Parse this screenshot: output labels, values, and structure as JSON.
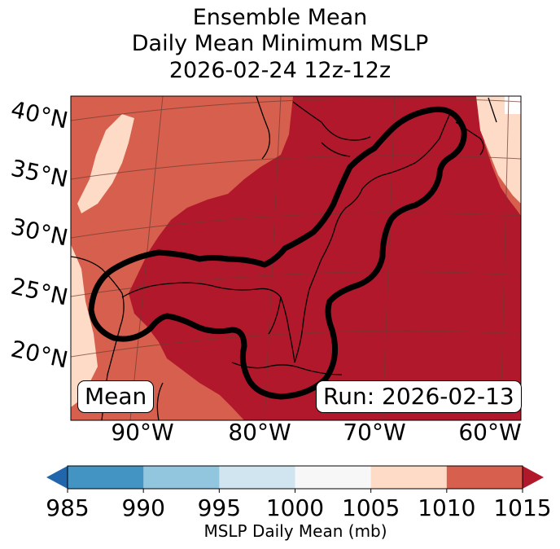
{
  "title": {
    "line1": "Ensemble Mean",
    "line2": "Daily Mean Minimum MSLP",
    "line3": "2026-02-24 12z-12z"
  },
  "map": {
    "lat_labels": [
      "40°N",
      "35°N",
      "30°N",
      "25°N",
      "20°N"
    ],
    "lon_labels": [
      "90°W",
      "80°W",
      "70°W",
      "60°W"
    ],
    "stat_label": "Mean",
    "run_label": "Run: 2026-02-13",
    "colors": {
      "below_985": "#2166ac",
      "985_990": "#4393c3",
      "990_995": "#92c5de",
      "995_1000": "#d1e5f0",
      "1000_1005": "#f7f7f7",
      "1005_1010": "#fddbc7",
      "1010_1015": "#d6604d",
      "above_1015": "#b2182b"
    }
  },
  "colorbar": {
    "ticks": [
      "985",
      "990",
      "995",
      "1000",
      "1005",
      "1010",
      "1015"
    ],
    "label": "MSLP Daily Mean (mb)",
    "colors": [
      "#4393c3",
      "#92c5de",
      "#d1e5f0",
      "#f7f7f7",
      "#fddbc7",
      "#d6604d"
    ],
    "under_color": "#2166ac",
    "over_color": "#b2182b"
  }
}
